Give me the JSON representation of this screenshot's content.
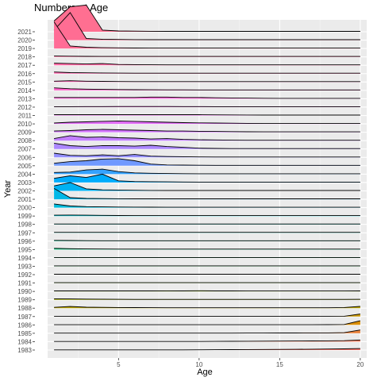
{
  "chart_data": {
    "type": "ridgeline",
    "title": "Numbers at Age",
    "xlabel": "Age",
    "ylabel": "Year",
    "x_ticks": [
      5,
      10,
      15,
      20
    ],
    "xlim": [
      0.6,
      20.4
    ],
    "grid": true,
    "legend": "none",
    "ages": [
      1,
      2,
      3,
      4,
      5,
      6,
      7,
      8,
      9,
      10,
      11,
      12,
      13,
      14,
      15,
      16,
      17,
      18,
      19,
      20
    ],
    "series": [
      {
        "year": "1983",
        "color": "#F8766D",
        "values": [
          0.02,
          0.02,
          0.02,
          0.02,
          0.02,
          0.02,
          0.02,
          0.02,
          0.02,
          0.03,
          0.04,
          0.05,
          0.06,
          0.07,
          0.08,
          0.09,
          0.1,
          0.12,
          0.14,
          0.18
        ]
      },
      {
        "year": "1984",
        "color": "#F47A5A",
        "values": [
          0.02,
          0.02,
          0.02,
          0.02,
          0.02,
          0.02,
          0.02,
          0.02,
          0.02,
          0.02,
          0.03,
          0.04,
          0.05,
          0.06,
          0.07,
          0.08,
          0.09,
          0.1,
          0.12,
          0.2
        ]
      },
      {
        "year": "1985",
        "color": "#E98440",
        "values": [
          0.02,
          0.02,
          0.02,
          0.02,
          0.02,
          0.02,
          0.02,
          0.02,
          0.02,
          0.02,
          0.02,
          0.02,
          0.03,
          0.03,
          0.04,
          0.04,
          0.05,
          0.05,
          0.08,
          0.4
        ]
      },
      {
        "year": "1986",
        "color": "#DB8E00",
        "values": [
          0.02,
          0.02,
          0.02,
          0.02,
          0.02,
          0.02,
          0.02,
          0.02,
          0.02,
          0.02,
          0.02,
          0.02,
          0.02,
          0.02,
          0.02,
          0.02,
          0.02,
          0.03,
          0.05,
          0.5
        ]
      },
      {
        "year": "1987",
        "color": "#C99700",
        "values": [
          0.02,
          0.02,
          0.02,
          0.02,
          0.02,
          0.02,
          0.02,
          0.02,
          0.02,
          0.02,
          0.02,
          0.02,
          0.02,
          0.02,
          0.02,
          0.02,
          0.02,
          0.02,
          0.04,
          0.3
        ]
      },
      {
        "year": "1988",
        "color": "#B49F00",
        "values": [
          0.1,
          0.2,
          0.12,
          0.1,
          0.08,
          0.07,
          0.06,
          0.05,
          0.05,
          0.05,
          0.05,
          0.05,
          0.05,
          0.05,
          0.05,
          0.05,
          0.05,
          0.05,
          0.08,
          0.22
        ]
      },
      {
        "year": "1989",
        "color": "#9DA700",
        "values": [
          0.12,
          0.1,
          0.08,
          0.07,
          0.06,
          0.05,
          0.05,
          0.05,
          0.05,
          0.05,
          0.05,
          0.05,
          0.05,
          0.05,
          0.05,
          0.05,
          0.05,
          0.05,
          0.05,
          0.06
        ]
      },
      {
        "year": "1990",
        "color": "#85AD00",
        "values": [
          0.06,
          0.06,
          0.06,
          0.06,
          0.06,
          0.06,
          0.06,
          0.07,
          0.06,
          0.08,
          0.06,
          0.06,
          0.05,
          0.05,
          0.05,
          0.05,
          0.05,
          0.05,
          0.05,
          0.06
        ]
      },
      {
        "year": "1991",
        "color": "#66B300",
        "values": [
          0.05,
          0.05,
          0.05,
          0.05,
          0.05,
          0.05,
          0.05,
          0.05,
          0.05,
          0.05,
          0.05,
          0.05,
          0.05,
          0.05,
          0.05,
          0.05,
          0.05,
          0.05,
          0.05,
          0.05
        ]
      },
      {
        "year": "1992",
        "color": "#3EB700",
        "values": [
          0.05,
          0.05,
          0.05,
          0.05,
          0.05,
          0.05,
          0.05,
          0.05,
          0.05,
          0.05,
          0.05,
          0.05,
          0.05,
          0.05,
          0.05,
          0.05,
          0.05,
          0.05,
          0.05,
          0.05
        ]
      },
      {
        "year": "1993",
        "color": "#00BA38",
        "values": [
          0.05,
          0.05,
          0.05,
          0.05,
          0.05,
          0.05,
          0.05,
          0.05,
          0.05,
          0.05,
          0.05,
          0.05,
          0.05,
          0.05,
          0.05,
          0.05,
          0.05,
          0.05,
          0.05,
          0.05
        ]
      },
      {
        "year": "1994",
        "color": "#00BC5C",
        "values": [
          0.05,
          0.05,
          0.05,
          0.05,
          0.05,
          0.05,
          0.05,
          0.05,
          0.05,
          0.05,
          0.05,
          0.05,
          0.05,
          0.05,
          0.05,
          0.05,
          0.05,
          0.05,
          0.05,
          0.05
        ]
      },
      {
        "year": "1995",
        "color": "#00BE78",
        "values": [
          0.15,
          0.1,
          0.07,
          0.06,
          0.05,
          0.05,
          0.05,
          0.05,
          0.05,
          0.05,
          0.05,
          0.05,
          0.05,
          0.05,
          0.05,
          0.05,
          0.05,
          0.05,
          0.05,
          0.05
        ]
      },
      {
        "year": "1996",
        "color": "#00BF90",
        "values": [
          0.1,
          0.08,
          0.06,
          0.05,
          0.05,
          0.05,
          0.05,
          0.05,
          0.05,
          0.05,
          0.05,
          0.05,
          0.05,
          0.05,
          0.05,
          0.05,
          0.05,
          0.05,
          0.05,
          0.05
        ]
      },
      {
        "year": "1997",
        "color": "#00C0A6",
        "values": [
          0.05,
          0.05,
          0.05,
          0.05,
          0.05,
          0.05,
          0.05,
          0.05,
          0.05,
          0.05,
          0.05,
          0.05,
          0.05,
          0.05,
          0.05,
          0.05,
          0.05,
          0.05,
          0.05,
          0.05
        ]
      },
      {
        "year": "1998",
        "color": "#00C0BA",
        "values": [
          0.05,
          0.05,
          0.05,
          0.05,
          0.05,
          0.05,
          0.05,
          0.05,
          0.05,
          0.05,
          0.05,
          0.05,
          0.05,
          0.05,
          0.05,
          0.05,
          0.05,
          0.05,
          0.05,
          0.05
        ]
      },
      {
        "year": "1999",
        "color": "#00BECC",
        "values": [
          0.1,
          0.12,
          0.1,
          0.08,
          0.06,
          0.05,
          0.05,
          0.05,
          0.05,
          0.05,
          0.05,
          0.05,
          0.05,
          0.05,
          0.05,
          0.05,
          0.05,
          0.05,
          0.05,
          0.05
        ]
      },
      {
        "year": "2000",
        "color": "#00BCDC",
        "values": [
          0.45,
          0.2,
          0.12,
          0.1,
          0.08,
          0.07,
          0.06,
          0.05,
          0.05,
          0.05,
          0.05,
          0.05,
          0.05,
          0.05,
          0.05,
          0.05,
          0.05,
          0.05,
          0.05,
          0.05
        ]
      },
      {
        "year": "2001",
        "color": "#00B8E7",
        "values": [
          1.3,
          0.2,
          0.1,
          0.08,
          0.06,
          0.05,
          0.05,
          0.05,
          0.05,
          0.05,
          0.05,
          0.05,
          0.05,
          0.05,
          0.05,
          0.05,
          0.05,
          0.05,
          0.05,
          0.05
        ]
      },
      {
        "year": "2002",
        "color": "#00B2F3",
        "values": [
          0.6,
          1.0,
          0.25,
          0.12,
          0.1,
          0.08,
          0.06,
          0.05,
          0.05,
          0.05,
          0.05,
          0.05,
          0.05,
          0.05,
          0.05,
          0.05,
          0.05,
          0.05,
          0.05,
          0.05
        ]
      },
      {
        "year": "2003",
        "color": "#00ACFC",
        "values": [
          0.5,
          0.8,
          0.6,
          1.0,
          0.2,
          0.12,
          0.1,
          0.08,
          0.06,
          0.05,
          0.05,
          0.05,
          0.05,
          0.05,
          0.05,
          0.05,
          0.05,
          0.05,
          0.05,
          0.05
        ]
      },
      {
        "year": "2004",
        "color": "#35A2FF",
        "values": [
          0.2,
          0.25,
          0.5,
          0.6,
          0.3,
          0.15,
          0.1,
          0.08,
          0.06,
          0.05,
          0.05,
          0.05,
          0.05,
          0.05,
          0.05,
          0.05,
          0.05,
          0.05,
          0.05,
          0.05
        ]
      },
      {
        "year": "2005",
        "color": "#7099FF",
        "values": [
          0.3,
          0.5,
          0.6,
          0.8,
          0.85,
          0.6,
          0.2,
          0.1,
          0.08,
          0.06,
          0.05,
          0.05,
          0.05,
          0.05,
          0.05,
          0.05,
          0.05,
          0.05,
          0.05,
          0.05
        ]
      },
      {
        "year": "2006",
        "color": "#938FFF",
        "values": [
          0.5,
          0.25,
          0.2,
          0.3,
          0.2,
          0.35,
          0.15,
          0.1,
          0.08,
          0.06,
          0.05,
          0.05,
          0.05,
          0.05,
          0.05,
          0.05,
          0.05,
          0.05,
          0.05,
          0.05
        ]
      },
      {
        "year": "2007",
        "color": "#AC88FF",
        "values": [
          0.7,
          0.4,
          0.3,
          0.4,
          0.4,
          0.35,
          0.45,
          0.3,
          0.2,
          0.1,
          0.07,
          0.05,
          0.05,
          0.05,
          0.05,
          0.05,
          0.05,
          0.05,
          0.05,
          0.05
        ]
      },
      {
        "year": "2008",
        "color": "#C27FFF",
        "values": [
          0.25,
          0.6,
          0.4,
          0.45,
          0.35,
          0.3,
          0.2,
          0.25,
          0.15,
          0.1,
          0.08,
          0.06,
          0.05,
          0.05,
          0.05,
          0.05,
          0.05,
          0.05,
          0.05,
          0.05
        ]
      },
      {
        "year": "2009",
        "color": "#D376FF",
        "values": [
          0.15,
          0.2,
          0.3,
          0.35,
          0.3,
          0.25,
          0.2,
          0.15,
          0.15,
          0.12,
          0.1,
          0.08,
          0.06,
          0.05,
          0.05,
          0.05,
          0.05,
          0.05,
          0.05,
          0.05
        ]
      },
      {
        "year": "2010",
        "color": "#E26EF7",
        "values": [
          0.1,
          0.2,
          0.25,
          0.3,
          0.35,
          0.3,
          0.25,
          0.2,
          0.15,
          0.12,
          0.1,
          0.08,
          0.06,
          0.05,
          0.05,
          0.05,
          0.05,
          0.05,
          0.05,
          0.05
        ]
      },
      {
        "year": "2011",
        "color": "#ED68ED",
        "values": [
          0.1,
          0.1,
          0.1,
          0.1,
          0.1,
          0.1,
          0.1,
          0.1,
          0.1,
          0.1,
          0.08,
          0.07,
          0.06,
          0.05,
          0.05,
          0.05,
          0.05,
          0.05,
          0.05,
          0.05
        ]
      },
      {
        "year": "2012",
        "color": "#F564E3",
        "values": [
          0.05,
          0.05,
          0.06,
          0.06,
          0.07,
          0.07,
          0.07,
          0.07,
          0.06,
          0.06,
          0.05,
          0.05,
          0.05,
          0.05,
          0.05,
          0.05,
          0.05,
          0.05,
          0.05,
          0.05
        ]
      },
      {
        "year": "2013",
        "color": "#FB61D7",
        "values": [
          0.15,
          0.15,
          0.15,
          0.15,
          0.15,
          0.15,
          0.2,
          0.2,
          0.15,
          0.15,
          0.12,
          0.1,
          0.08,
          0.06,
          0.05,
          0.05,
          0.05,
          0.05,
          0.05,
          0.05
        ]
      },
      {
        "year": "2014",
        "color": "#FF61C9",
        "values": [
          0.3,
          0.2,
          0.15,
          0.12,
          0.1,
          0.08,
          0.07,
          0.06,
          0.06,
          0.05,
          0.05,
          0.05,
          0.05,
          0.05,
          0.05,
          0.05,
          0.05,
          0.05,
          0.05,
          0.05
        ]
      },
      {
        "year": "2015",
        "color": "#FF63B6",
        "values": [
          0.1,
          0.15,
          0.1,
          0.08,
          0.06,
          0.05,
          0.05,
          0.05,
          0.05,
          0.05,
          0.05,
          0.05,
          0.05,
          0.05,
          0.05,
          0.05,
          0.05,
          0.05,
          0.05,
          0.05
        ]
      },
      {
        "year": "2016",
        "color": "#FF65AE",
        "values": [
          0.2,
          0.12,
          0.1,
          0.08,
          0.06,
          0.05,
          0.05,
          0.05,
          0.05,
          0.05,
          0.05,
          0.05,
          0.05,
          0.05,
          0.05,
          0.05,
          0.05,
          0.05,
          0.05,
          0.05
        ]
      },
      {
        "year": "2017",
        "color": "#FF67A4",
        "values": [
          0.25,
          0.2,
          0.15,
          0.2,
          0.1,
          0.08,
          0.06,
          0.05,
          0.05,
          0.05,
          0.05,
          0.05,
          0.05,
          0.05,
          0.05,
          0.05,
          0.05,
          0.05,
          0.05,
          0.05
        ]
      },
      {
        "year": "2018",
        "color": "#FF699C",
        "values": [
          0.1,
          0.08,
          0.06,
          0.05,
          0.05,
          0.05,
          0.05,
          0.05,
          0.05,
          0.05,
          0.05,
          0.05,
          0.05,
          0.05,
          0.05,
          0.05,
          0.05,
          0.05,
          0.05,
          0.05
        ]
      },
      {
        "year": "2019",
        "color": "#FF6C96",
        "values": [
          3.2,
          0.3,
          0.15,
          0.1,
          0.08,
          0.06,
          0.05,
          0.05,
          0.05,
          0.05,
          0.05,
          0.05,
          0.05,
          0.05,
          0.05,
          0.05,
          0.05,
          0.05,
          0.05,
          0.05
        ]
      },
      {
        "year": "2020",
        "color": "#FF6D93",
        "values": [
          1.2,
          3.3,
          0.2,
          0.1,
          0.08,
          0.06,
          0.05,
          0.05,
          0.05,
          0.05,
          0.05,
          0.05,
          0.05,
          0.05,
          0.05,
          0.05,
          0.05,
          0.05,
          0.05,
          0.05
        ]
      },
      {
        "year": "2021",
        "color": "#FF6F91",
        "values": [
          1.3,
          3.0,
          3.2,
          0.2,
          0.1,
          0.08,
          0.06,
          0.05,
          0.05,
          0.05,
          0.05,
          0.05,
          0.05,
          0.05,
          0.05,
          0.05,
          0.05,
          0.05,
          0.05,
          0.05
        ]
      }
    ]
  }
}
